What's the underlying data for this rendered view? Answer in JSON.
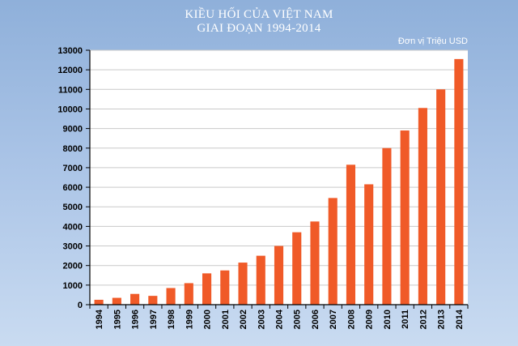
{
  "chart_data": {
    "type": "bar",
    "title": [
      "KIỀU HỐI CỦA VIỆT NAM",
      "GIAI ĐOẠN 1994-2014"
    ],
    "unit": "Đơn vị Triệu USD",
    "categories": [
      "1994",
      "1995",
      "1996",
      "1997",
      "1998",
      "1999",
      "2000",
      "2001",
      "2002",
      "2003",
      "2004",
      "2005",
      "2006",
      "2007",
      "2008",
      "2009",
      "2010",
      "2011",
      "2012",
      "2013",
      "2014"
    ],
    "values": [
      250,
      350,
      550,
      450,
      850,
      1100,
      1600,
      1750,
      2150,
      2500,
      3000,
      3700,
      4250,
      5450,
      7150,
      6150,
      8000,
      8900,
      10050,
      11000,
      12550
    ],
    "yticks": [
      0,
      1000,
      2000,
      3000,
      4000,
      5000,
      6000,
      7000,
      8000,
      9000,
      10000,
      11000,
      12000,
      13000
    ],
    "ylim": [
      0,
      13000
    ],
    "grid": true,
    "bar_color": "#f05a28",
    "plot_background": "#ffffff",
    "grid_color": "#c9c9c9"
  }
}
